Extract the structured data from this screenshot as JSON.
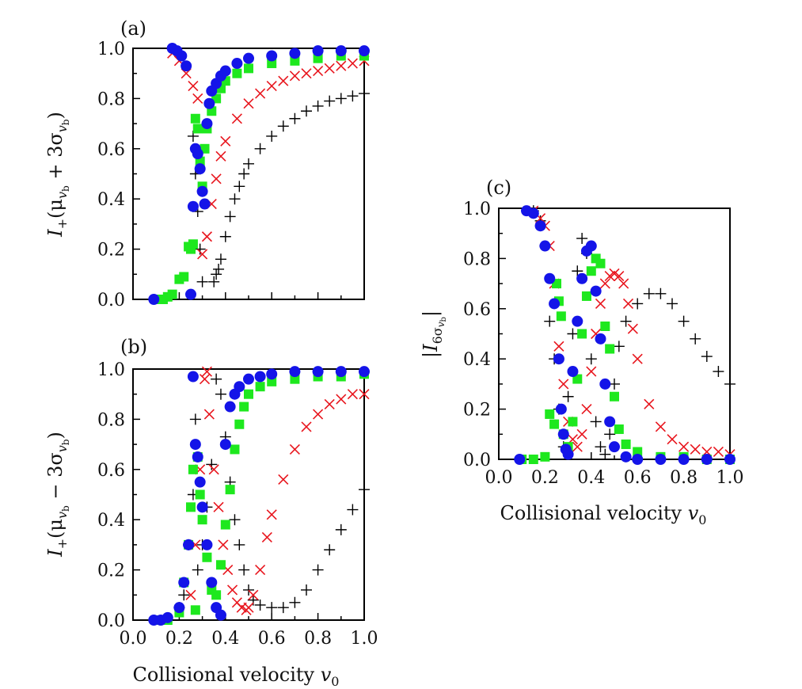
{
  "chart_data": [
    {
      "panel": "(a)",
      "type": "scatter",
      "xlim": [
        0,
        1
      ],
      "ylim": [
        0,
        1
      ],
      "xticks": [],
      "yticks": [
        "0.0",
        "0.2",
        "0.4",
        "0.6",
        "0.8",
        "1.0"
      ],
      "xlabel": "",
      "ylabel_main": "I",
      "ylabel_sub": "+",
      "ylabel_rest": "(μ",
      "ylabel_rest_sub": "v",
      "ylabel_rest_subsub": "b",
      "ylabel_op": " + 3σ",
      "ylabel_tail": ")",
      "series": [
        {
          "name": "black-plus",
          "marker": "plus",
          "color": "#000000",
          "x": [
            0.26,
            0.27,
            0.28,
            0.29,
            0.3,
            0.35,
            0.36,
            0.37,
            0.38,
            0.4,
            0.42,
            0.44,
            0.46,
            0.48,
            0.5,
            0.55,
            0.6,
            0.65,
            0.7,
            0.75,
            0.8,
            0.85,
            0.9,
            0.95,
            1.0
          ],
          "y": [
            0.65,
            0.5,
            0.35,
            0.2,
            0.07,
            0.07,
            0.1,
            0.12,
            0.16,
            0.25,
            0.33,
            0.4,
            0.45,
            0.5,
            0.54,
            0.6,
            0.65,
            0.69,
            0.72,
            0.75,
            0.77,
            0.79,
            0.8,
            0.81,
            0.82
          ]
        },
        {
          "name": "red-x",
          "marker": "x",
          "color": "#e8161e",
          "x": [
            0.17,
            0.2,
            0.23,
            0.26,
            0.28,
            0.3,
            0.32,
            0.34,
            0.36,
            0.38,
            0.4,
            0.45,
            0.5,
            0.55,
            0.6,
            0.65,
            0.7,
            0.75,
            0.8,
            0.85,
            0.9,
            0.95,
            1.0
          ],
          "y": [
            0.98,
            0.95,
            0.9,
            0.85,
            0.8,
            0.18,
            0.25,
            0.38,
            0.48,
            0.57,
            0.63,
            0.72,
            0.78,
            0.82,
            0.85,
            0.87,
            0.89,
            0.9,
            0.91,
            0.92,
            0.93,
            0.94,
            0.95
          ]
        },
        {
          "name": "green-square",
          "marker": "square",
          "color": "#1ee81e",
          "x": [
            0.1,
            0.13,
            0.15,
            0.17,
            0.2,
            0.22,
            0.24,
            0.25,
            0.26,
            0.27,
            0.28,
            0.29,
            0.3,
            0.31,
            0.32,
            0.34,
            0.36,
            0.38,
            0.4,
            0.45,
            0.5,
            0.6,
            0.7,
            0.8,
            0.9,
            1.0
          ],
          "y": [
            0.0,
            0.0,
            0.01,
            0.02,
            0.08,
            0.09,
            0.21,
            0.2,
            0.22,
            0.72,
            0.68,
            0.55,
            0.45,
            0.6,
            0.68,
            0.75,
            0.8,
            0.84,
            0.87,
            0.9,
            0.92,
            0.94,
            0.95,
            0.96,
            0.97,
            0.97
          ]
        },
        {
          "name": "blue-circle",
          "marker": "circle",
          "color": "#1414e8",
          "x": [
            0.09,
            0.17,
            0.19,
            0.21,
            0.23,
            0.25,
            0.26,
            0.27,
            0.28,
            0.29,
            0.3,
            0.31,
            0.32,
            0.33,
            0.34,
            0.36,
            0.38,
            0.4,
            0.45,
            0.5,
            0.6,
            0.7,
            0.8,
            0.9,
            1.0
          ],
          "y": [
            0.0,
            1.0,
            0.99,
            0.97,
            0.93,
            0.02,
            0.37,
            0.6,
            0.58,
            0.52,
            0.43,
            0.38,
            0.7,
            0.78,
            0.83,
            0.86,
            0.89,
            0.91,
            0.94,
            0.96,
            0.97,
            0.98,
            0.99,
            0.99,
            0.99
          ]
        }
      ]
    },
    {
      "panel": "(b)",
      "type": "scatter",
      "xlim": [
        0,
        1
      ],
      "ylim": [
        0,
        1
      ],
      "xticks": [
        "0.0",
        "0.2",
        "0.4",
        "0.6",
        "0.8",
        "1.0"
      ],
      "yticks": [
        "0.0",
        "0.2",
        "0.4",
        "0.6",
        "0.8",
        "1.0"
      ],
      "xlabel": "Collisional velocity",
      "xlabel_var": "v",
      "xlabel_sub": "0",
      "ylabel_main": "I",
      "ylabel_sub": "+",
      "ylabel_rest": "(μ",
      "ylabel_rest_sub": "v",
      "ylabel_rest_subsub": "b",
      "ylabel_op": " − 3σ",
      "ylabel_tail": ")",
      "series": [
        {
          "name": "black-plus",
          "marker": "plus",
          "color": "#000000",
          "x": [
            0.2,
            0.22,
            0.24,
            0.26,
            0.27,
            0.28,
            0.3,
            0.32,
            0.34,
            0.36,
            0.38,
            0.4,
            0.42,
            0.44,
            0.46,
            0.48,
            0.5,
            0.52,
            0.55,
            0.6,
            0.65,
            0.7,
            0.75,
            0.8,
            0.85,
            0.9,
            0.95,
            1.0
          ],
          "y": [
            0.05,
            0.1,
            0.3,
            0.5,
            0.8,
            0.2,
            0.3,
            0.45,
            0.62,
            0.96,
            0.9,
            0.73,
            0.55,
            0.4,
            0.3,
            0.2,
            0.12,
            0.08,
            0.06,
            0.05,
            0.05,
            0.07,
            0.12,
            0.2,
            0.28,
            0.36,
            0.44,
            0.52
          ]
        },
        {
          "name": "red-x",
          "marker": "x",
          "color": "#e8161e",
          "x": [
            0.25,
            0.27,
            0.29,
            0.31,
            0.32,
            0.33,
            0.35,
            0.37,
            0.39,
            0.41,
            0.43,
            0.45,
            0.47,
            0.49,
            0.5,
            0.52,
            0.55,
            0.58,
            0.6,
            0.65,
            0.7,
            0.75,
            0.8,
            0.85,
            0.9,
            0.95,
            1.0
          ],
          "y": [
            0.1,
            0.3,
            0.6,
            0.96,
            0.99,
            0.82,
            0.6,
            0.45,
            0.3,
            0.2,
            0.12,
            0.07,
            0.05,
            0.04,
            0.05,
            0.1,
            0.2,
            0.33,
            0.42,
            0.56,
            0.68,
            0.77,
            0.82,
            0.86,
            0.88,
            0.9,
            0.9
          ]
        },
        {
          "name": "green-square",
          "marker": "square",
          "color": "#1ee81e",
          "x": [
            0.1,
            0.15,
            0.2,
            0.22,
            0.24,
            0.25,
            0.26,
            0.27,
            0.28,
            0.29,
            0.3,
            0.32,
            0.34,
            0.36,
            0.38,
            0.4,
            0.42,
            0.44,
            0.46,
            0.48,
            0.5,
            0.55,
            0.6,
            0.7,
            0.8,
            0.9,
            1.0
          ],
          "y": [
            0.0,
            0.0,
            0.03,
            0.15,
            0.3,
            0.45,
            0.6,
            0.04,
            0.65,
            0.5,
            0.4,
            0.25,
            0.12,
            0.1,
            0.22,
            0.38,
            0.52,
            0.68,
            0.78,
            0.85,
            0.9,
            0.93,
            0.95,
            0.96,
            0.97,
            0.97,
            0.98
          ]
        },
        {
          "name": "blue-circle",
          "marker": "circle",
          "color": "#1414e8",
          "x": [
            0.09,
            0.12,
            0.15,
            0.2,
            0.22,
            0.24,
            0.26,
            0.27,
            0.28,
            0.29,
            0.3,
            0.32,
            0.34,
            0.36,
            0.38,
            0.4,
            0.42,
            0.44,
            0.46,
            0.5,
            0.55,
            0.6,
            0.7,
            0.8,
            0.9,
            1.0
          ],
          "y": [
            0.0,
            0.0,
            0.01,
            0.05,
            0.15,
            0.3,
            0.97,
            0.7,
            0.65,
            0.55,
            0.45,
            0.3,
            0.15,
            0.05,
            0.02,
            0.7,
            0.85,
            0.9,
            0.93,
            0.96,
            0.97,
            0.98,
            0.99,
            0.99,
            0.99,
            0.99
          ]
        }
      ]
    },
    {
      "panel": "(c)",
      "type": "scatter",
      "xlim": [
        0,
        1
      ],
      "ylim": [
        0,
        1
      ],
      "xticks": [
        "0.0",
        "0.2",
        "0.4",
        "0.6",
        "0.8",
        "1.0"
      ],
      "yticks": [
        "0.0",
        "0.2",
        "0.4",
        "0.6",
        "0.8",
        "1.0"
      ],
      "xlabel": "Collisional velocity",
      "xlabel_var": "v",
      "xlabel_sub": "0",
      "ylabel_main": "|I",
      "ylabel_sub": "6σ",
      "ylabel_subsub": "v",
      "ylabel_subsubsub": "b",
      "ylabel_tail": "|",
      "series": [
        {
          "name": "black-plus",
          "marker": "plus",
          "color": "#000000",
          "x": [
            0.15,
            0.18,
            0.2,
            0.22,
            0.24,
            0.26,
            0.28,
            0.3,
            0.32,
            0.34,
            0.36,
            0.38,
            0.4,
            0.42,
            0.44,
            0.46,
            0.48,
            0.5,
            0.52,
            0.55,
            0.6,
            0.65,
            0.7,
            0.75,
            0.8,
            0.85,
            0.9,
            0.95,
            1.0
          ],
          "y": [
            0.99,
            0.95,
            0.85,
            0.55,
            0.4,
            0.2,
            0.05,
            0.25,
            0.5,
            0.75,
            0.88,
            0.82,
            0.4,
            0.15,
            0.05,
            0.02,
            0.1,
            0.3,
            0.45,
            0.55,
            0.62,
            0.66,
            0.66,
            0.62,
            0.55,
            0.48,
            0.41,
            0.35,
            0.3
          ]
        },
        {
          "name": "red-x",
          "marker": "x",
          "color": "#e8161e",
          "x": [
            0.15,
            0.18,
            0.2,
            0.22,
            0.24,
            0.26,
            0.28,
            0.3,
            0.32,
            0.34,
            0.36,
            0.38,
            0.4,
            0.42,
            0.44,
            0.46,
            0.48,
            0.5,
            0.52,
            0.54,
            0.56,
            0.58,
            0.6,
            0.65,
            0.7,
            0.75,
            0.8,
            0.85,
            0.9,
            0.95,
            1.0
          ],
          "y": [
            0.99,
            0.96,
            0.93,
            0.85,
            0.7,
            0.45,
            0.3,
            0.15,
            0.08,
            0.05,
            0.1,
            0.2,
            0.35,
            0.5,
            0.62,
            0.7,
            0.73,
            0.74,
            0.73,
            0.7,
            0.62,
            0.52,
            0.4,
            0.22,
            0.13,
            0.08,
            0.05,
            0.04,
            0.03,
            0.03,
            0.02
          ]
        },
        {
          "name": "green-square",
          "marker": "square",
          "color": "#1ee81e",
          "x": [
            0.1,
            0.15,
            0.2,
            0.22,
            0.24,
            0.25,
            0.26,
            0.27,
            0.28,
            0.3,
            0.32,
            0.34,
            0.36,
            0.38,
            0.4,
            0.42,
            0.44,
            0.46,
            0.48,
            0.5,
            0.52,
            0.55,
            0.6,
            0.7,
            0.8,
            0.9,
            1.0
          ],
          "y": [
            0.0,
            0.0,
            0.01,
            0.18,
            0.14,
            0.7,
            0.63,
            0.57,
            0.1,
            0.05,
            0.15,
            0.32,
            0.5,
            0.65,
            0.75,
            0.8,
            0.78,
            0.53,
            0.44,
            0.25,
            0.12,
            0.06,
            0.03,
            0.01,
            0.01,
            0.0,
            0.0
          ]
        },
        {
          "name": "blue-circle",
          "marker": "circle",
          "color": "#1414e8",
          "x": [
            0.09,
            0.12,
            0.15,
            0.18,
            0.2,
            0.22,
            0.24,
            0.26,
            0.27,
            0.28,
            0.29,
            0.3,
            0.32,
            0.34,
            0.36,
            0.38,
            0.4,
            0.42,
            0.44,
            0.46,
            0.48,
            0.5,
            0.55,
            0.6,
            0.7,
            0.8,
            0.9,
            1.0
          ],
          "y": [
            0.0,
            0.99,
            0.98,
            0.93,
            0.85,
            0.72,
            0.62,
            0.4,
            0.2,
            0.1,
            0.04,
            0.02,
            0.35,
            0.55,
            0.72,
            0.83,
            0.85,
            0.67,
            0.48,
            0.3,
            0.15,
            0.05,
            0.01,
            0.0,
            0.0,
            0.0,
            0.0,
            0.0
          ]
        }
      ]
    }
  ]
}
